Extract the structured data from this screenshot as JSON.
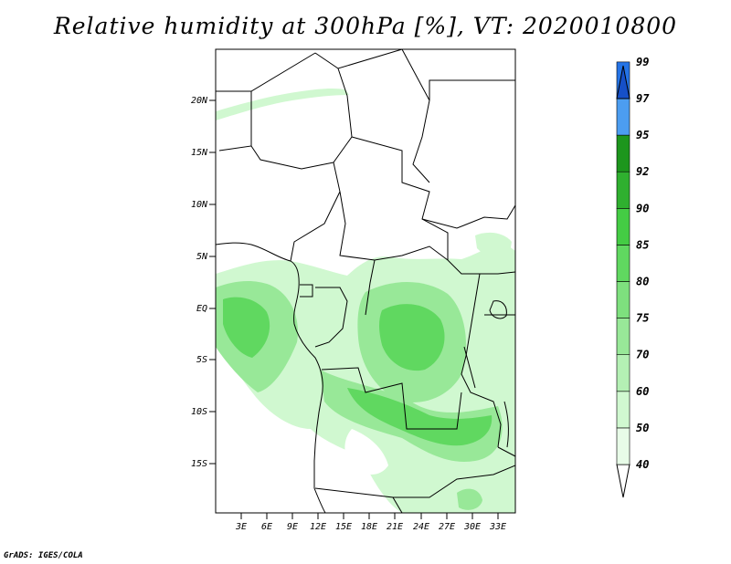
{
  "title": "Relative humidity at 300hPa [%], VT: 2020010800",
  "credit": "GrADS: IGES/COLA",
  "map": {
    "lat_labels": [
      "20N",
      "15N",
      "10N",
      "5N",
      "EQ",
      "5S",
      "10S",
      "15S"
    ],
    "lon_labels": [
      "3E",
      "6E",
      "9E",
      "12E",
      "15E",
      "18E",
      "21E",
      "24E",
      "27E",
      "30E",
      "33E"
    ]
  },
  "colorbar": {
    "levels": [
      "40",
      "50",
      "60",
      "70",
      "75",
      "80",
      "85",
      "90",
      "92",
      "95",
      "97",
      "99"
    ],
    "colors": [
      "#e8fce8",
      "#d0f8d0",
      "#b4f0b4",
      "#98e898",
      "#7ee07e",
      "#60d860",
      "#44cc44",
      "#2fb02f",
      "#1d961d",
      "#4c9df0",
      "#2574e6",
      "#1650c8"
    ]
  }
}
